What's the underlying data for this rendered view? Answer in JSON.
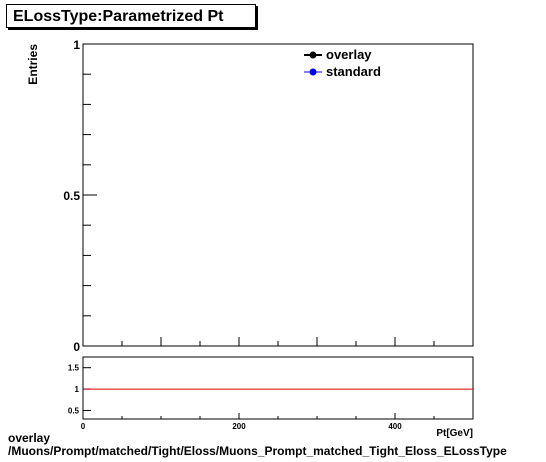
{
  "title": "ELossType:Parametrized Pt",
  "footer": {
    "line1": "overlay",
    "line2": "/Muons/Prompt/matched/Tight/Eloss/Muons_Prompt_matched_Tight_Eloss_ELossType"
  },
  "colors": {
    "overlay": "#000000",
    "standard": "#0000ff",
    "ratio_line": "#cc0000"
  },
  "chart_data": [
    {
      "type": "line",
      "title": "ELossType:Parametrized Pt",
      "ylabel": "Entries",
      "xlabel": "Pt[GeV]",
      "xlim": [
        0,
        500
      ],
      "ylim": [
        0,
        1
      ],
      "yticks": [
        {
          "value": 0,
          "label": "0"
        },
        {
          "value": 0.5,
          "label": "0.5"
        },
        {
          "value": 1,
          "label": "1"
        }
      ],
      "legend_position": "top-right",
      "series": [
        {
          "name": "overlay",
          "color": "#000000",
          "x": [],
          "y": []
        },
        {
          "name": "standard",
          "color": "#0000ff",
          "x": [],
          "y": []
        }
      ]
    },
    {
      "type": "line",
      "title": "",
      "xlim": [
        0,
        500
      ],
      "ylim": [
        0.3,
        1.75
      ],
      "xticks": [
        {
          "value": 0,
          "label": "0"
        },
        {
          "value": 200,
          "label": "200"
        },
        {
          "value": 400,
          "label": "400"
        }
      ],
      "yticks": [
        {
          "value": 0.5,
          "label": "0.5"
        },
        {
          "value": 1,
          "label": "1"
        },
        {
          "value": 1.5,
          "label": "1.5"
        }
      ],
      "reference_line": 1
    }
  ]
}
